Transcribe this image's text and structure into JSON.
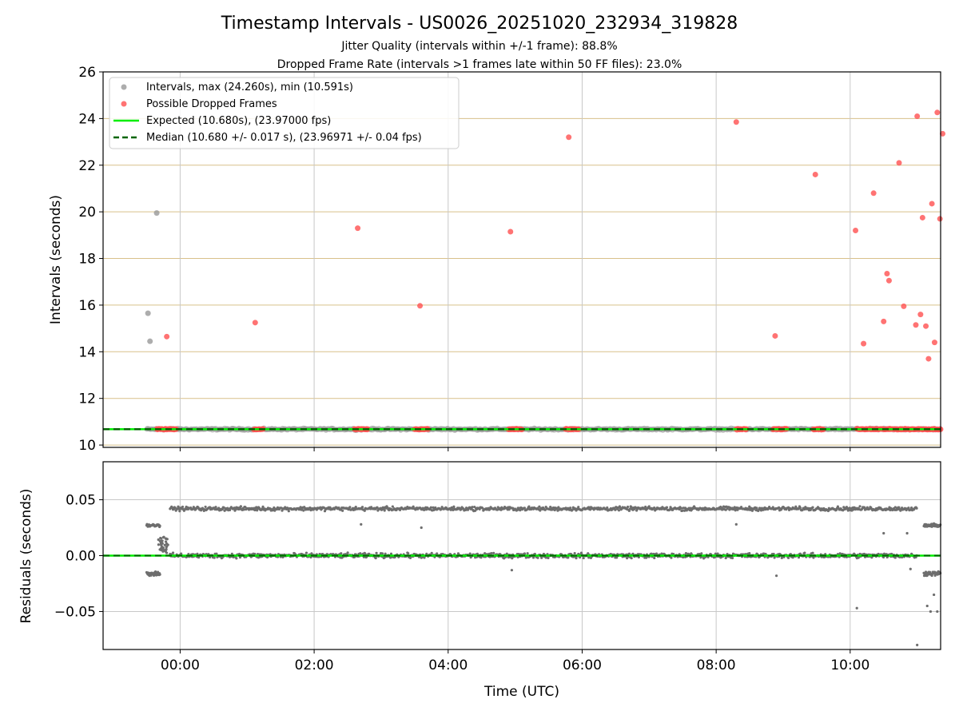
{
  "title": "Timestamp Intervals - US0026_20251020_232934_319828",
  "subtitle_1": "Jitter Quality (intervals within +/-1 frame): 88.8%",
  "subtitle_2": "Dropped Frame Rate (intervals >1 frames late within 50 FF files): 23.0%",
  "colors": {
    "interval_points": "#999999",
    "dropped_points": "#ff5050",
    "expected_line": "#00ee00",
    "median_line": "#006400",
    "grid_top": "#d8c08a",
    "grid_bottom": "#c8c8c8",
    "residual_points": "#6e6e6e"
  },
  "chart_data": [
    {
      "type": "scatter",
      "panel": "intervals",
      "ylabel": "Intervals (seconds)",
      "xlabel": "",
      "xlim_hours": [
        -1.15,
        11.35
      ],
      "ylim": [
        9.9,
        26
      ],
      "yticks": [
        10,
        12,
        14,
        16,
        18,
        20,
        22,
        24,
        26
      ],
      "ytick_labels": [
        "10",
        "12",
        "14",
        "16",
        "18",
        "20",
        "22",
        "24",
        "26"
      ],
      "legend_position": "upper-left",
      "legend": [
        "Intervals, max (24.260s), min (10.591s)",
        "Possible Dropped Frames",
        "Expected (10.680s), (23.97000 fps)",
        "Median (10.680 +/- 0.017 s), (23.96971 +/- 0.04 fps)"
      ],
      "expected_interval": 10.68,
      "median_interval": 10.68,
      "series_intervals": {
        "name": "Intervals",
        "dense_band": {
          "x_start_hours": -0.5,
          "x_end_hours": 11.35,
          "y_center": 10.68,
          "y_spread": 0.06
        },
        "outliers": [
          {
            "x": -0.48,
            "y": 15.65
          },
          {
            "x": -0.45,
            "y": 14.45
          },
          {
            "x": -0.35,
            "y": 19.95
          }
        ]
      },
      "series_dropped": {
        "name": "Possible Dropped Frames",
        "clusters": [
          [
            -0.35,
            -0.05
          ],
          [
            1.1,
            1.25
          ],
          [
            2.6,
            2.8
          ],
          [
            3.5,
            3.7
          ],
          [
            4.9,
            5.1
          ],
          [
            5.75,
            5.95
          ],
          [
            8.3,
            8.45
          ],
          [
            8.85,
            9.05
          ],
          [
            9.45,
            9.6
          ],
          [
            10.1,
            11.35
          ]
        ],
        "outliers": [
          {
            "x": -0.2,
            "y": 14.65
          },
          {
            "x": 1.12,
            "y": 15.25
          },
          {
            "x": 2.65,
            "y": 19.3
          },
          {
            "x": 3.58,
            "y": 15.97
          },
          {
            "x": 4.93,
            "y": 19.15
          },
          {
            "x": 5.8,
            "y": 23.2
          },
          {
            "x": 8.3,
            "y": 23.85
          },
          {
            "x": 8.88,
            "y": 14.68
          },
          {
            "x": 9.48,
            "y": 21.6
          },
          {
            "x": 10.08,
            "y": 19.2
          },
          {
            "x": 10.2,
            "y": 14.35
          },
          {
            "x": 10.35,
            "y": 20.8
          },
          {
            "x": 10.5,
            "y": 15.3
          },
          {
            "x": 10.55,
            "y": 17.35
          },
          {
            "x": 10.58,
            "y": 17.05
          },
          {
            "x": 10.73,
            "y": 22.1
          },
          {
            "x": 10.8,
            "y": 15.95
          },
          {
            "x": 10.98,
            "y": 15.15
          },
          {
            "x": 11.0,
            "y": 24.1
          },
          {
            "x": 11.05,
            "y": 15.6
          },
          {
            "x": 11.08,
            "y": 19.75
          },
          {
            "x": 11.13,
            "y": 15.1
          },
          {
            "x": 11.17,
            "y": 13.7
          },
          {
            "x": 11.22,
            "y": 20.35
          },
          {
            "x": 11.26,
            "y": 14.4
          },
          {
            "x": 11.3,
            "y": 24.26
          },
          {
            "x": 11.34,
            "y": 19.7
          },
          {
            "x": 11.38,
            "y": 23.35
          }
        ]
      }
    },
    {
      "type": "scatter",
      "panel": "residuals",
      "ylabel": "Residuals (seconds)",
      "xlabel": "Time (UTC)",
      "xlim_hours": [
        -1.15,
        11.35
      ],
      "ylim": [
        -0.084,
        0.084
      ],
      "yticks": [
        -0.05,
        0.0,
        0.05
      ],
      "ytick_labels": [
        "−0.05",
        "0.00",
        "0.05"
      ],
      "xticks_hours": [
        0,
        2,
        4,
        6,
        8,
        10
      ],
      "xtick_labels": [
        "00:00",
        "02:00",
        "04:00",
        "06:00",
        "08:00",
        "10:00"
      ],
      "zero_line": 0.0,
      "bands": [
        {
          "x_start_hours": -0.15,
          "x_end_hours": 11.0,
          "y_center": 0.042,
          "y_spread": 0.0025
        },
        {
          "x_start_hours": -0.15,
          "x_end_hours": 11.0,
          "y_center": 0.0,
          "y_spread": 0.003
        },
        {
          "x_start_hours": -0.5,
          "x_end_hours": -0.3,
          "y_center": -0.016,
          "y_spread": 0.003
        },
        {
          "x_start_hours": -0.5,
          "x_end_hours": -0.3,
          "y_center": 0.027,
          "y_spread": 0.002
        },
        {
          "x_start_hours": 11.1,
          "x_end_hours": 11.35,
          "y_center": -0.016,
          "y_spread": 0.003
        },
        {
          "x_start_hours": 11.1,
          "x_end_hours": 11.35,
          "y_center": 0.027,
          "y_spread": 0.002
        }
      ],
      "outliers": [
        {
          "x": 2.7,
          "y": 0.028
        },
        {
          "x": 3.6,
          "y": 0.025
        },
        {
          "x": 4.95,
          "y": -0.013
        },
        {
          "x": 8.3,
          "y": 0.028
        },
        {
          "x": 8.9,
          "y": -0.018
        },
        {
          "x": 10.1,
          "y": -0.047
        },
        {
          "x": 10.5,
          "y": 0.02
        },
        {
          "x": 10.85,
          "y": 0.02
        },
        {
          "x": 10.9,
          "y": -0.012
        },
        {
          "x": 11.0,
          "y": -0.08
        },
        {
          "x": 11.15,
          "y": -0.045
        },
        {
          "x": 11.2,
          "y": -0.05
        },
        {
          "x": 11.25,
          "y": -0.035
        },
        {
          "x": 11.3,
          "y": -0.05
        }
      ]
    }
  ]
}
